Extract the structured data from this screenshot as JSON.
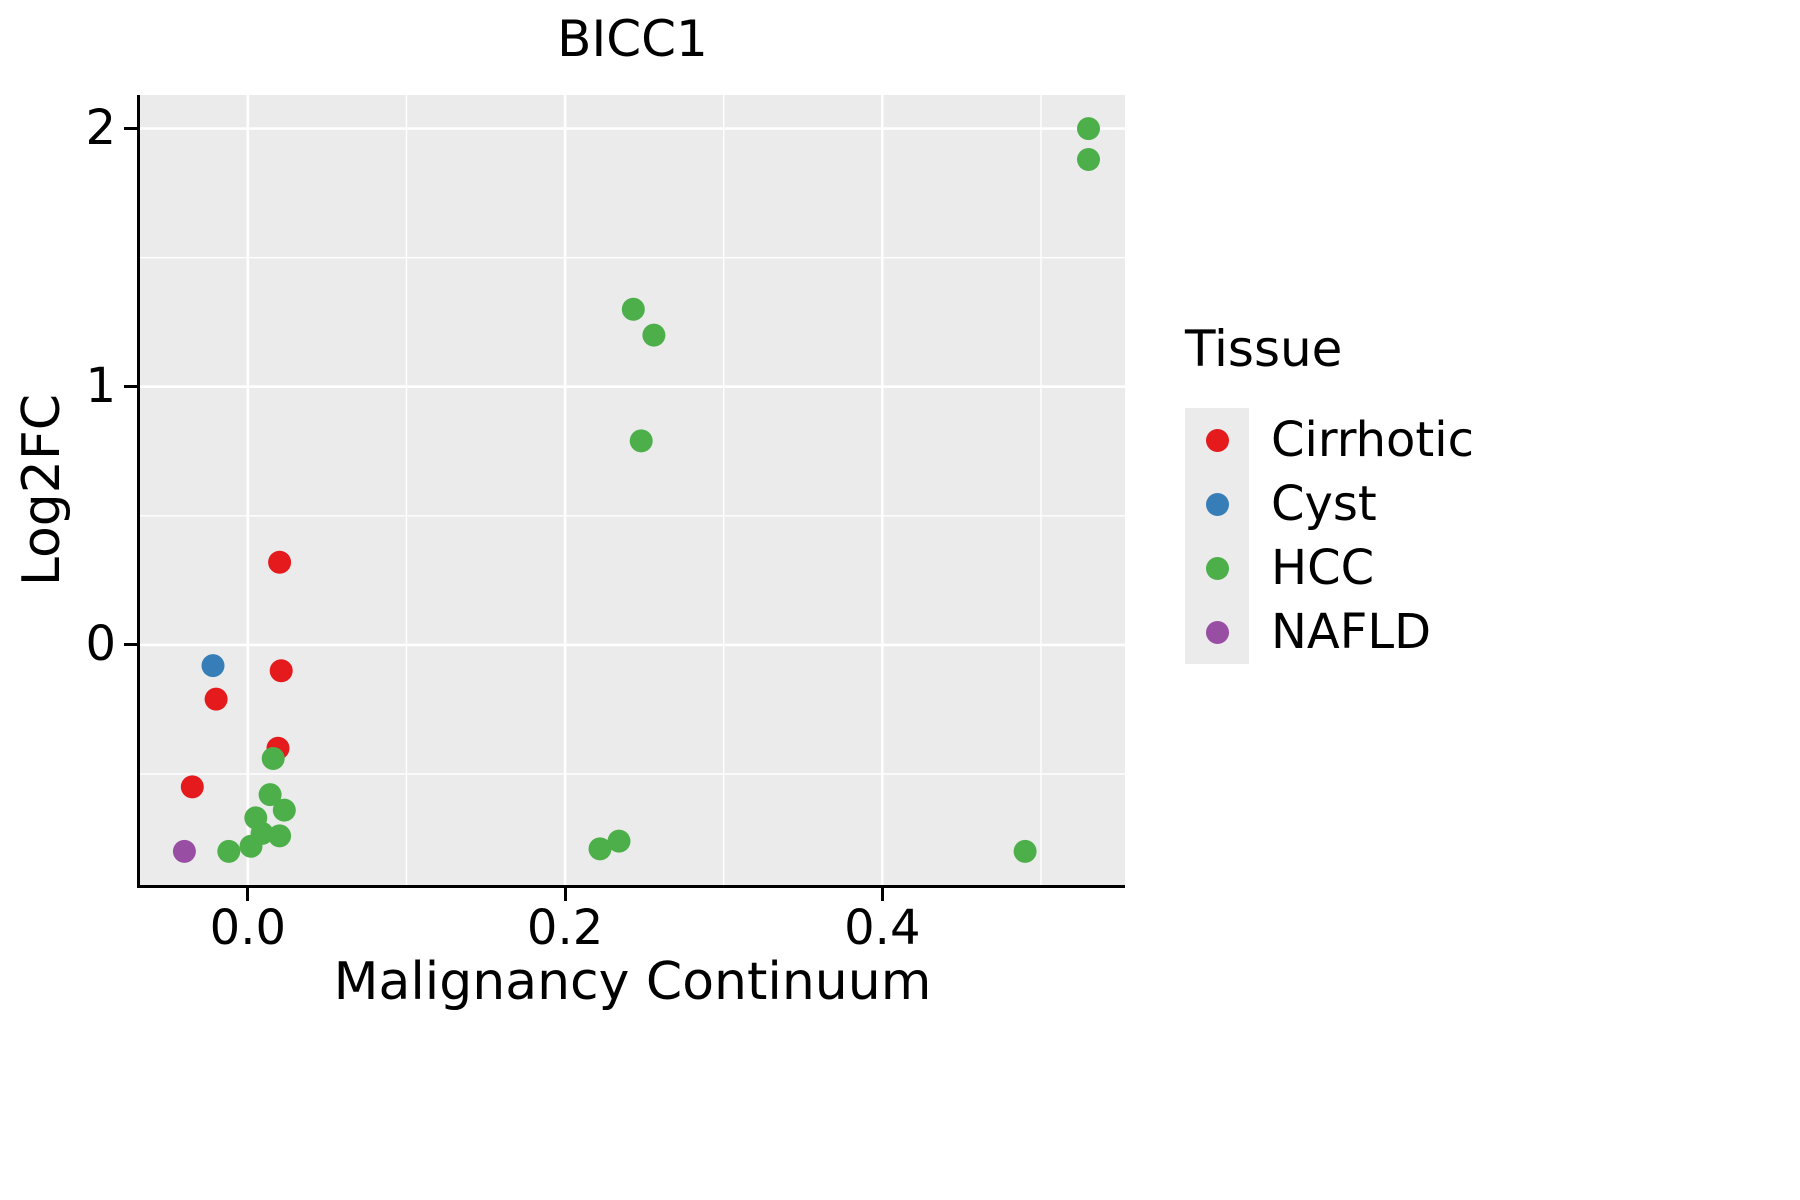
{
  "chart_data": {
    "type": "scatter",
    "title": "BICC1",
    "xlabel": "Malignancy Continuum",
    "ylabel": "Log2FC",
    "legend_title": "Tissue",
    "legend_position": "right",
    "grid": true,
    "panel_bg": "#EBEBEB",
    "grid_color": "#FFFFFF",
    "xlim": [
      -0.068,
      0.553
    ],
    "ylim": [
      -0.93,
      2.13
    ],
    "x_ticks": [
      {
        "value": 0.0,
        "label": "0.0"
      },
      {
        "value": 0.2,
        "label": "0.2"
      },
      {
        "value": 0.4,
        "label": "0.4"
      }
    ],
    "y_ticks": [
      {
        "value": 0,
        "label": "0"
      },
      {
        "value": 1,
        "label": "1"
      },
      {
        "value": 2,
        "label": "2"
      }
    ],
    "x_minor": [
      0.1,
      0.3,
      0.5
    ],
    "y_minor": [
      -0.5,
      0.5,
      1.5
    ],
    "series": [
      {
        "name": "Cirrhotic",
        "color": "#E41A1C",
        "points": [
          [
            0.02,
            0.32
          ],
          [
            0.021,
            -0.1
          ],
          [
            -0.02,
            -0.21
          ],
          [
            0.019,
            -0.4
          ],
          [
            -0.035,
            -0.55
          ]
        ]
      },
      {
        "name": "Cyst",
        "color": "#377EB8",
        "points": [
          [
            -0.022,
            -0.08
          ]
        ]
      },
      {
        "name": "HCC",
        "color": "#4DAF4A",
        "points": [
          [
            0.53,
            2.0
          ],
          [
            0.53,
            1.88
          ],
          [
            0.243,
            1.3
          ],
          [
            0.256,
            1.2
          ],
          [
            0.248,
            0.79
          ],
          [
            0.016,
            -0.44
          ],
          [
            0.014,
            -0.58
          ],
          [
            0.023,
            -0.64
          ],
          [
            0.005,
            -0.67
          ],
          [
            0.009,
            -0.73
          ],
          [
            0.02,
            -0.74
          ],
          [
            -0.012,
            -0.8
          ],
          [
            0.002,
            -0.78
          ],
          [
            0.222,
            -0.79
          ],
          [
            0.234,
            -0.76
          ],
          [
            0.49,
            -0.8
          ]
        ]
      },
      {
        "name": "NAFLD",
        "color": "#984EA3",
        "points": [
          [
            -0.04,
            -0.8
          ]
        ]
      }
    ]
  }
}
